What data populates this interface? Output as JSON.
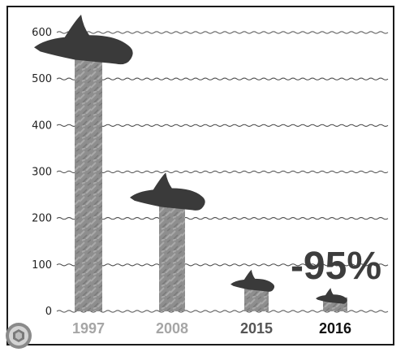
{
  "chart_data": {
    "type": "bar",
    "title": "",
    "xlabel": "",
    "ylabel": "",
    "categories": [
      "1997",
      "2008",
      "2015",
      "2016"
    ],
    "values": [
      567,
      245,
      60,
      30
    ],
    "ylim": [
      0,
      600
    ],
    "yticks": [
      0,
      100,
      200,
      300,
      400,
      500,
      600
    ],
    "grid": true,
    "annotation": "-95%",
    "colors": {
      "bar": "#8c8c8c",
      "marker": "#3a3a3a",
      "grid": "#4a4a4a",
      "label_past": "#a6a6a6",
      "label_2015": "#555555",
      "label_2016": "#111111"
    },
    "marker_icon": "dolphin-icon"
  }
}
